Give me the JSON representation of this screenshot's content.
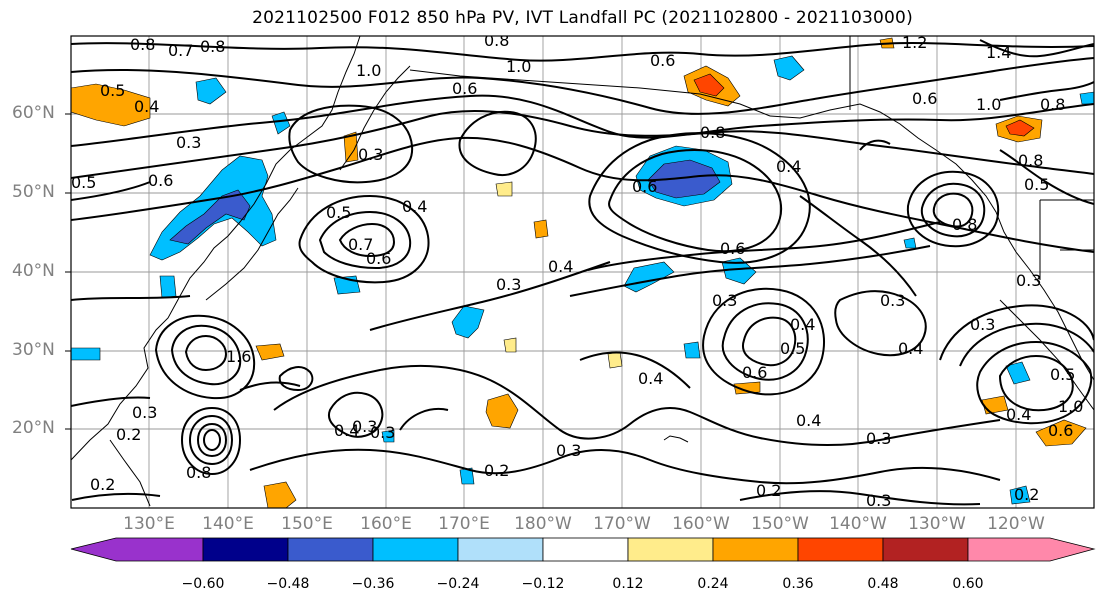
{
  "title": "2021102500 F012 850 hPa PV, IVT Landfall PC (2021102800 - 2021103000)",
  "lat_labels": [
    "60°N",
    "50°N",
    "40°N",
    "30°N",
    "20°N"
  ],
  "lon_labels": [
    "130°E",
    "140°E",
    "150°E",
    "160°E",
    "170°E",
    "180°W",
    "170°W",
    "160°W",
    "150°W",
    "140°W",
    "130°W",
    "120°W"
  ],
  "colorbar": {
    "tick_labels": [
      "−0.60",
      "−0.48",
      "−0.36",
      "−0.24",
      "−0.12",
      "0.12",
      "0.24",
      "0.36",
      "0.48",
      "0.60"
    ],
    "colors": [
      "#9932cc",
      "#00008b",
      "#3a5bcd",
      "#00bfff",
      "#b0e0fa",
      "#ffffff",
      "#ffec8b",
      "#ffa500",
      "#ff4500",
      "#b22222",
      "#ff88aa"
    ]
  },
  "contour_labels": [
    {
      "text": "0.8"
    },
    {
      "text": "0.7"
    },
    {
      "text": "0.8"
    },
    {
      "text": "0.5"
    },
    {
      "text": "0.4"
    },
    {
      "text": "0.3"
    },
    {
      "text": "0.6"
    },
    {
      "text": "0.5"
    },
    {
      "text": "1.0"
    },
    {
      "text": "0.6"
    },
    {
      "text": "0.8"
    },
    {
      "text": "1.0"
    },
    {
      "text": "0.3"
    },
    {
      "text": "0.5"
    },
    {
      "text": "0.4"
    },
    {
      "text": "0.7"
    },
    {
      "text": "0.6"
    },
    {
      "text": "0.3"
    },
    {
      "text": "0.4"
    },
    {
      "text": "0.6"
    },
    {
      "text": "0.8"
    },
    {
      "text": "0.6"
    },
    {
      "text": "0.4"
    },
    {
      "text": "0.3"
    },
    {
      "text": "0.6"
    },
    {
      "text": "0.5"
    },
    {
      "text": "0.4"
    },
    {
      "text": "0.6"
    },
    {
      "text": "0.4"
    },
    {
      "text": "0.3"
    },
    {
      "text": "0.4"
    },
    {
      "text": "0.2"
    },
    {
      "text": "0.3"
    },
    {
      "text": "1.2"
    },
    {
      "text": "1.4"
    },
    {
      "text": "1.0"
    },
    {
      "text": "0.6"
    },
    {
      "text": "0.8"
    },
    {
      "text": "0.5"
    },
    {
      "text": "0.8"
    },
    {
      "text": "0.3"
    },
    {
      "text": "0.4"
    },
    {
      "text": "0.3"
    },
    {
      "text": "0.4"
    },
    {
      "text": "1.0"
    },
    {
      "text": "0.6"
    },
    {
      "text": "0.2"
    },
    {
      "text": "0.3"
    },
    {
      "text": "0.2"
    },
    {
      "text": "0.3"
    },
    {
      "text": "0.8"
    },
    {
      "text": "0.3"
    },
    {
      "text": "0.4"
    },
    {
      "text": "0.3"
    },
    {
      "text": "0.2"
    },
    {
      "text": "0.5"
    },
    {
      "text": "0.2"
    },
    {
      "text": "1.6"
    },
    {
      "text": "0.8"
    },
    {
      "text": "0.3"
    }
  ]
}
